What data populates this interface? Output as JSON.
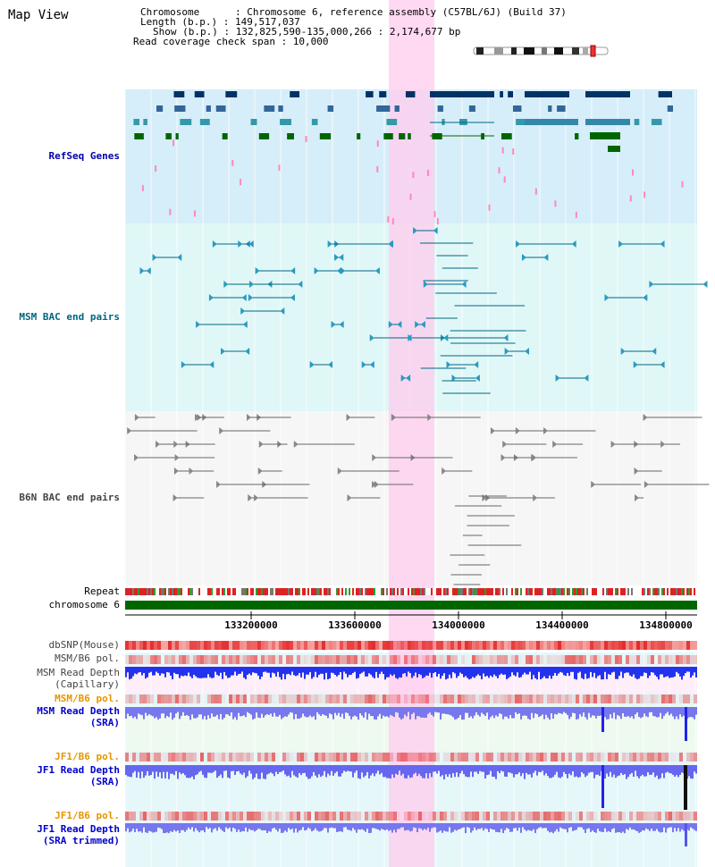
{
  "title": "Map View",
  "info": {
    "chromosome": "Chromosome      : Chromosome 6, reference assembly (C57BL/6J) (Build 37)",
    "length": "Length (b.p.) : 149,517,037",
    "show": "Show (b.p.) : 132,825,590-135,000,266 : 2,174,677 bp",
    "coverage": "Read coverage check span : 10,000"
  },
  "tracks": {
    "refseq": "RefSeq Genes",
    "msm_bac": "MSM BAC end pairs",
    "b6n_bac": "B6N BAC end pairs",
    "repeat": "Repeat",
    "chromosome": "chromosome 6",
    "dbsnp": "dbSNP(Mouse)",
    "msm_b6_pol_1": "MSM/B6 pol.",
    "msm_read_depth_cap_1": "MSM Read Depth",
    "msm_read_depth_cap_2": "(Capillary)",
    "msm_b6_pol_2": "MSM/B6 pol.",
    "msm_read_depth_sra_1": "MSM Read Depth",
    "msm_read_depth_sra_2": "(SRA)",
    "jf1_b6_pol_1": "JF1/B6 pol.",
    "jf1_read_depth_sra_1": "JF1 Read Depth",
    "jf1_read_depth_sra_2": "(SRA)",
    "jf1_b6_pol_2": "JF1/B6 pol.",
    "jf1_read_depth_trim_1": "JF1 Read Depth",
    "jf1_read_depth_trim_2": "(SRA trimmed)"
  },
  "ruler": {
    "ticks": [
      "133200000",
      "133600000",
      "134000000",
      "134400000",
      "134800000"
    ]
  },
  "colors": {
    "refseq_label": "#0000aa",
    "msm_label": "#006680",
    "b6n_label": "#444444",
    "pol_orange": "#e69500",
    "depth_blue": "#0000cc",
    "highlight": "#ffccee",
    "chromosome_green": "#006600"
  }
}
